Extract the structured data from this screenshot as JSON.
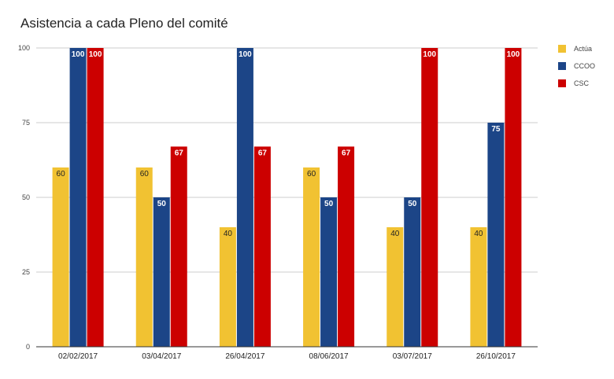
{
  "chart_data": {
    "type": "bar",
    "title": "Asistencia a cada Pleno del comité",
    "xlabel": "",
    "ylabel": "",
    "ylim": [
      0,
      100
    ],
    "yticks": [
      0,
      25,
      50,
      75,
      100
    ],
    "grid": true,
    "legend_position": "right",
    "categories": [
      "02/02/2017",
      "03/04/2017",
      "26/04/2017",
      "08/06/2017",
      "03/07/2017",
      "26/10/2017"
    ],
    "series": [
      {
        "name": "Actúa",
        "color": "#f1c232",
        "label_color": "#222222",
        "values": [
          60,
          60,
          40,
          60,
          40,
          40
        ]
      },
      {
        "name": "CCOO",
        "color": "#1c4587",
        "label_color": "#ffffff",
        "values": [
          100,
          50,
          100,
          50,
          50,
          75
        ]
      },
      {
        "name": "CSC",
        "color": "#cc0000",
        "label_color": "#ffffff",
        "values": [
          100,
          67,
          67,
          67,
          100,
          100
        ]
      }
    ]
  }
}
